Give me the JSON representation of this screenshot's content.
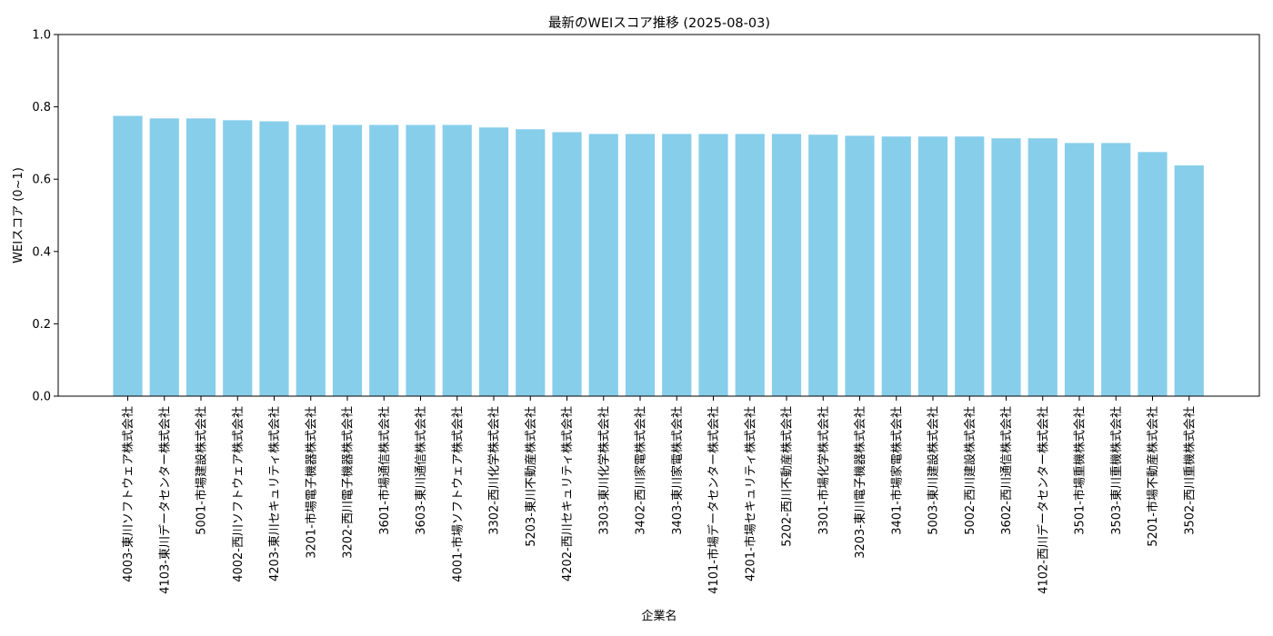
{
  "chart_data": {
    "type": "bar",
    "title": "最新のWEIスコア推移 (2025-08-03)",
    "xlabel": "企業名",
    "ylabel": "WEIスコア (0~1)",
    "ylim": [
      0,
      1
    ],
    "yticks": [
      "0.0",
      "0.2",
      "0.4",
      "0.6",
      "0.8",
      "1.0"
    ],
    "bar_color": "#87CEEB",
    "grid": false,
    "categories": [
      "4003-東川ソフトウェア株式会社",
      "4103-東川データセンター株式会社",
      "5001-市場建設株式会社",
      "4002-西川ソフトウェア株式会社",
      "4203-東川セキュリティ株式会社",
      "3201-市場電子機器株式会社",
      "3202-西川電子機器株式会社",
      "3601-市場通信株式会社",
      "3603-東川通信株式会社",
      "4001-市場ソフトウェア株式会社",
      "3302-西川化学株式会社",
      "5203-東川不動産株式会社",
      "4202-西川セキュリティ株式会社",
      "3303-東川化学株式会社",
      "3402-西川家電株式会社",
      "3403-東川家電株式会社",
      "4101-市場データセンター株式会社",
      "4201-市場セキュリティ株式会社",
      "5202-西川不動産株式会社",
      "3301-市場化学株式会社",
      "3203-東川電子機器株式会社",
      "3401-市場家電株式会社",
      "5003-東川建設株式会社",
      "5002-西川建設株式会社",
      "3602-西川通信株式会社",
      "4102-西川データセンター株式会社",
      "3501-市場重機株式会社",
      "3503-東川重機株式会社",
      "5201-市場不動産株式会社",
      "3502-西川重機株式会社"
    ],
    "values": [
      0.775,
      0.768,
      0.768,
      0.763,
      0.76,
      0.75,
      0.75,
      0.75,
      0.75,
      0.75,
      0.743,
      0.738,
      0.73,
      0.725,
      0.725,
      0.725,
      0.725,
      0.725,
      0.725,
      0.723,
      0.72,
      0.718,
      0.718,
      0.718,
      0.713,
      0.713,
      0.7,
      0.7,
      0.675,
      0.638
    ]
  }
}
